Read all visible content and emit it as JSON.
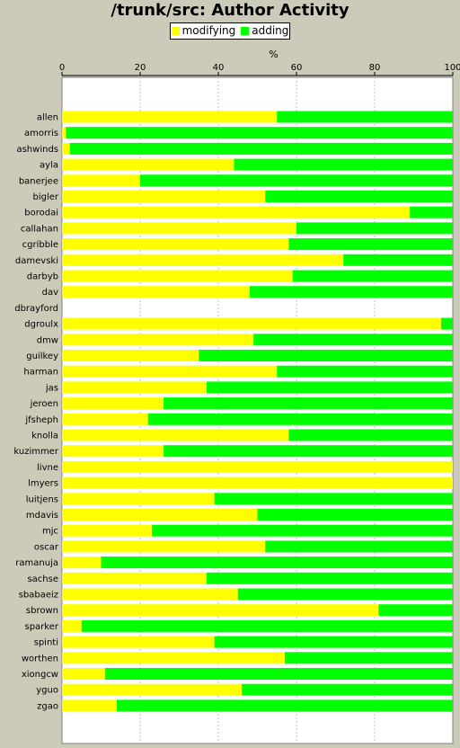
{
  "chart_data": {
    "type": "bar",
    "orientation": "horizontal",
    "stacked": true,
    "title": "/trunk/src: Author Activity",
    "xlabel": "%",
    "ylabel": "",
    "xlim": [
      0,
      100
    ],
    "x_ticks": [
      0,
      20,
      40,
      60,
      80,
      100
    ],
    "grid": true,
    "legend_position": "top",
    "categories": [
      "allen",
      "amorris",
      "ashwinds",
      "ayla",
      "banerjee",
      "bigler",
      "borodai",
      "callahan",
      "cgribble",
      "damevski",
      "darbyb",
      "dav",
      "dbrayford",
      "dgroulx",
      "dmw",
      "guilkey",
      "harman",
      "jas",
      "jeroen",
      "jfsheph",
      "knolla",
      "kuzimmer",
      "livne",
      "lmyers",
      "luitjens",
      "mdavis",
      "mjc",
      "oscar",
      "ramanuja",
      "sachse",
      "sbabaeiz",
      "sbrown",
      "sparker",
      "spinti",
      "worthen",
      "xiongcw",
      "yguo",
      "zgao"
    ],
    "series": [
      {
        "name": "modifying",
        "color": "#ffff00",
        "values": [
          55,
          1,
          2,
          44,
          20,
          52,
          89,
          60,
          58,
          72,
          59,
          48,
          0,
          97,
          49,
          35,
          55,
          37,
          26,
          22,
          58,
          26,
          100,
          100,
          39,
          50,
          23,
          52,
          10,
          37,
          45,
          81,
          5,
          39,
          57,
          11,
          46,
          14
        ]
      },
      {
        "name": "adding",
        "color": "#00ff00",
        "values": [
          45,
          99,
          98,
          56,
          80,
          48,
          11,
          40,
          42,
          28,
          41,
          52,
          0,
          3,
          51,
          65,
          45,
          63,
          74,
          78,
          42,
          74,
          0,
          0,
          61,
          50,
          77,
          48,
          90,
          63,
          55,
          19,
          95,
          61,
          43,
          89,
          54,
          86
        ]
      }
    ]
  },
  "colors": {
    "background": "#cccbb9",
    "plot_background": "#ffffff",
    "gridline": "#c0c0c0"
  }
}
